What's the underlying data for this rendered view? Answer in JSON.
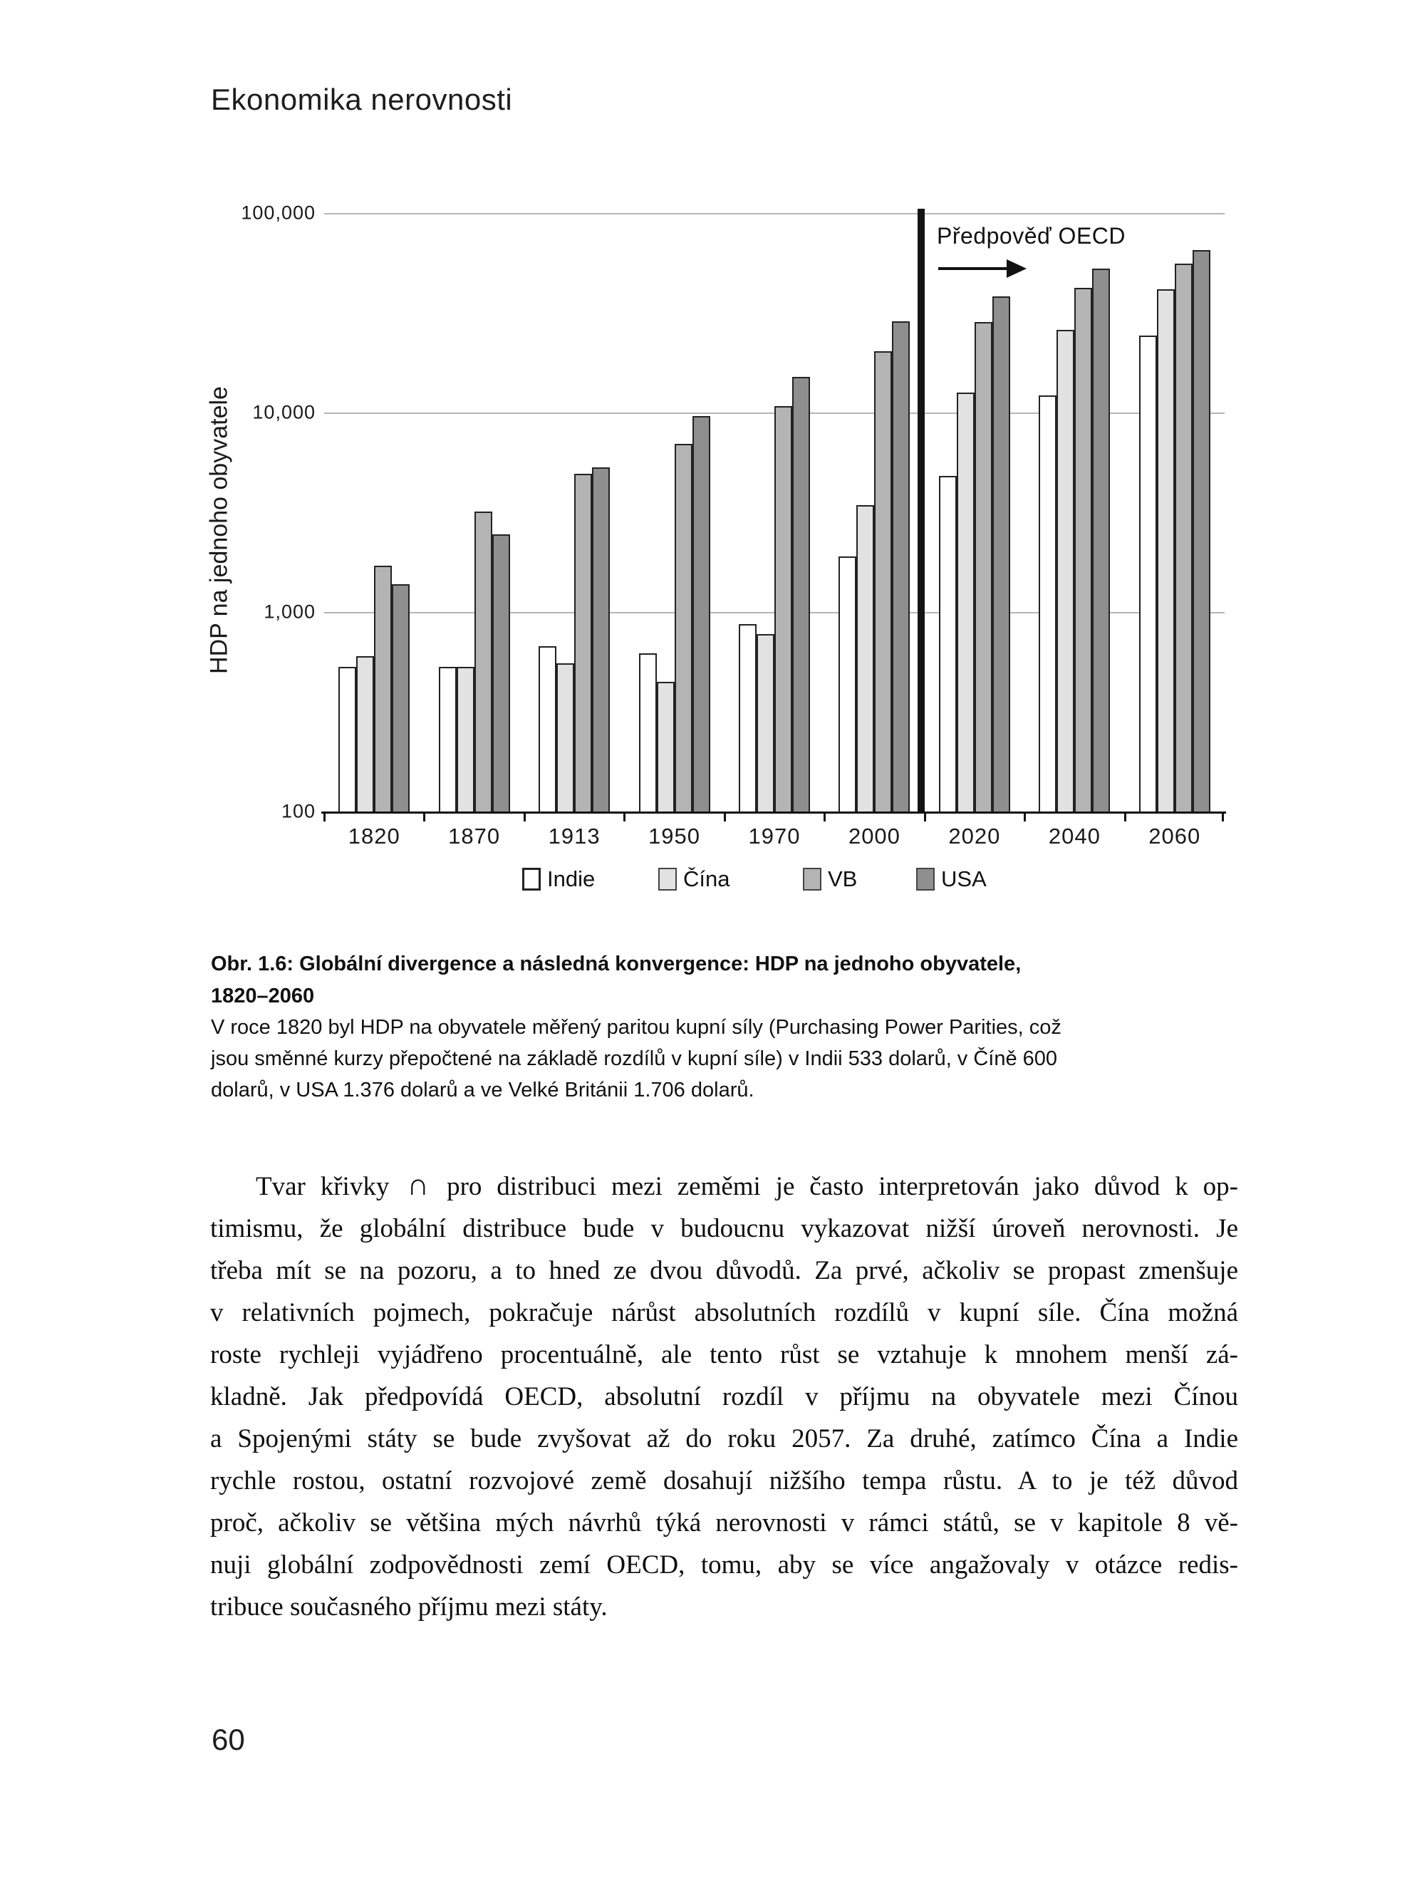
{
  "page": {
    "running_header": "Ekonomika nerovnosti",
    "page_number": "60"
  },
  "chart_data": {
    "type": "bar",
    "y_scale": "log",
    "ylabel": "HDP na jednoho obyvatele",
    "xlabel": "",
    "ylim": [
      100,
      100000
    ],
    "y_ticks": [
      "100,000",
      "10,000",
      "1,000",
      "100"
    ],
    "grid": true,
    "legend_position": "bottom",
    "categories": [
      "1820",
      "1870",
      "1913",
      "1950",
      "1970",
      "2000",
      "2020",
      "2040",
      "2060"
    ],
    "series": [
      {
        "name": "Indie",
        "color": "#ffffff",
        "values": [
          533,
          533,
          673,
          619,
          868,
          1892,
          4800,
          12200,
          24300
        ]
      },
      {
        "name": "Čína",
        "color": "#e2e2e2",
        "values": [
          600,
          530,
          552,
          448,
          778,
          3421,
          12600,
          26000,
          41500
        ]
      },
      {
        "name": "VB",
        "color": "#b4b4b4",
        "values": [
          1706,
          3190,
          4921,
          6939,
          10767,
          20353,
          28400,
          42200,
          55700
        ]
      },
      {
        "name": "USA",
        "color": "#8f8f8f",
        "values": [
          1376,
          2445,
          5301,
          9561,
          15030,
          28702,
          38200,
          52600,
          65200
        ]
      }
    ],
    "annotation": {
      "label": "Předpověď OECD",
      "divider_between": [
        "2000",
        "2020"
      ]
    }
  },
  "figure": {
    "caption_title_lines": [
      "Obr. 1.6: Globální divergence a následná konvergence: HDP na jednoho obyvatele,",
      "1820–2060"
    ],
    "caption_body_lines": [
      "V roce 1820 byl HDP na obyvatele měřený paritou kupní síly (Purchasing Power Parities, což",
      "jsou směnné kurzy přepočtené na základě rozdílů v kupní síle) v Indii 533 dolarů, v Číně 600",
      "dolarů, v USA 1.376 dolarů a ve Velké Británii 1.706 dolarů."
    ]
  },
  "body": {
    "lines": [
      "Tvar křivky ∩ pro distribuci mezi zeměmi je často interpretován jako důvod k op-",
      "timismu, že globální distribuce bude v budoucnu vykazovat nižší úroveň nerovnosti. Je",
      "třeba mít se na pozoru, a to hned ze dvou důvodů. Za prvé, ačkoliv se propast zmenšuje",
      "v relativních pojmech, pokračuje nárůst absolutních rozdílů v kupní síle. Čína možná",
      "roste rychleji vyjádřeno procentuálně, ale tento růst se vztahuje k mnohem menší zá-",
      "kladně. Jak předpovídá OECD, absolutní rozdíl v příjmu na obyvatele mezi Čínou",
      "a Spojenými státy se bude zvyšovat až do roku 2057. Za druhé, zatímco Čína a Indie",
      "rychle rostou, ostatní rozvojové země dosahují nižšího tempa růstu. A to je též důvod",
      "proč, ačkoliv se většina mých návrhů týká nerovnosti v rámci států, se v kapitole 8 vě-",
      "nuji globální zodpovědnosti zemí OECD, tomu, aby se více angažovaly v otázce redis-",
      "tribuce současného příjmu mezi státy."
    ]
  }
}
